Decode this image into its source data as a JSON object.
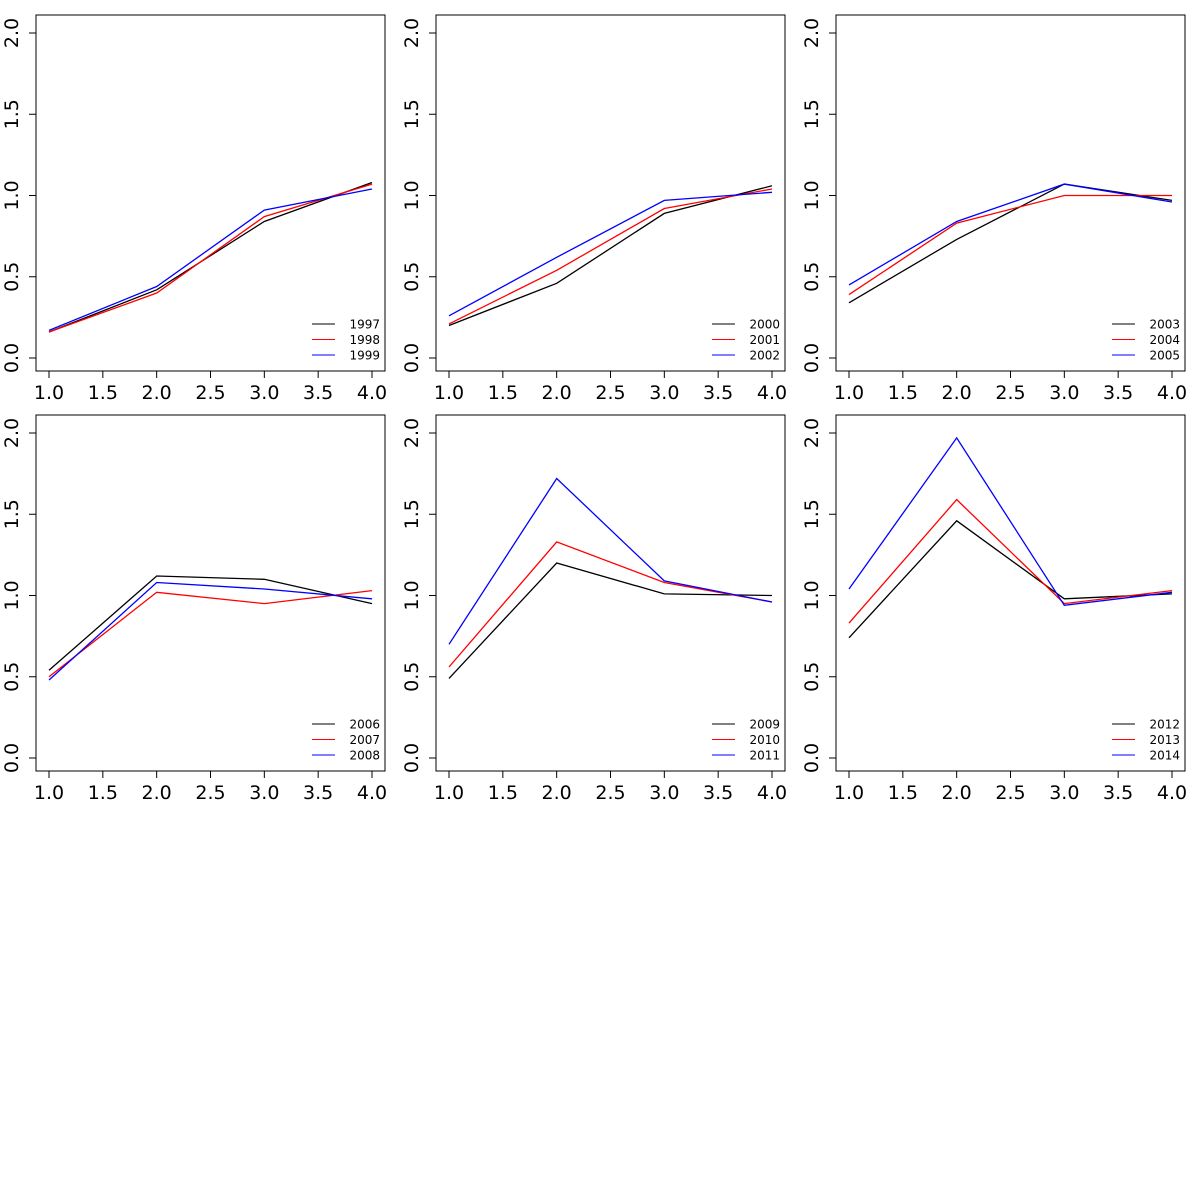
{
  "chart_data": [
    {
      "type": "line",
      "x": [
        1,
        2,
        3,
        4
      ],
      "series": [
        {
          "name": "1997",
          "color": "#000000",
          "values": [
            0.16,
            0.42,
            0.84,
            1.08
          ]
        },
        {
          "name": "1998",
          "color": "#ff0000",
          "values": [
            0.16,
            0.4,
            0.87,
            1.07
          ]
        },
        {
          "name": "1999",
          "color": "#0000ff",
          "values": [
            0.17,
            0.44,
            0.91,
            1.04
          ]
        }
      ],
      "xlim": [
        1,
        4
      ],
      "ylim": [
        0,
        2
      ],
      "xticks": [
        "1.0",
        "1.5",
        "2.0",
        "2.5",
        "3.0",
        "3.5",
        "4.0"
      ],
      "yticks": [
        "0.0",
        "0.5",
        "1.0",
        "1.5",
        "2.0"
      ],
      "legend_position": "bottom-right",
      "grid": false
    },
    {
      "type": "line",
      "x": [
        1,
        2,
        3,
        4
      ],
      "series": [
        {
          "name": "2000",
          "color": "#000000",
          "values": [
            0.2,
            0.46,
            0.89,
            1.06
          ]
        },
        {
          "name": "2001",
          "color": "#ff0000",
          "values": [
            0.21,
            0.54,
            0.92,
            1.04
          ]
        },
        {
          "name": "2002",
          "color": "#0000ff",
          "values": [
            0.26,
            0.62,
            0.97,
            1.02
          ]
        }
      ],
      "xlim": [
        1,
        4
      ],
      "ylim": [
        0,
        2
      ],
      "xticks": [
        "1.0",
        "1.5",
        "2.0",
        "2.5",
        "3.0",
        "3.5",
        "4.0"
      ],
      "yticks": [
        "0.0",
        "0.5",
        "1.0",
        "1.5",
        "2.0"
      ],
      "legend_position": "bottom-right",
      "grid": false
    },
    {
      "type": "line",
      "x": [
        1,
        2,
        3,
        4
      ],
      "series": [
        {
          "name": "2003",
          "color": "#000000",
          "values": [
            0.34,
            0.73,
            1.07,
            0.97
          ]
        },
        {
          "name": "2004",
          "color": "#ff0000",
          "values": [
            0.39,
            0.83,
            1.0,
            1.0
          ]
        },
        {
          "name": "2005",
          "color": "#0000ff",
          "values": [
            0.45,
            0.84,
            1.07,
            0.96
          ]
        }
      ],
      "xlim": [
        1,
        4
      ],
      "ylim": [
        0,
        2
      ],
      "xticks": [
        "1.0",
        "1.5",
        "2.0",
        "2.5",
        "3.0",
        "3.5",
        "4.0"
      ],
      "yticks": [
        "0.0",
        "0.5",
        "1.0",
        "1.5",
        "2.0"
      ],
      "legend_position": "bottom-right",
      "grid": false
    },
    {
      "type": "line",
      "x": [
        1,
        2,
        3,
        4
      ],
      "series": [
        {
          "name": "2006",
          "color": "#000000",
          "values": [
            0.54,
            1.12,
            1.1,
            0.95
          ]
        },
        {
          "name": "2007",
          "color": "#ff0000",
          "values": [
            0.5,
            1.02,
            0.95,
            1.03
          ]
        },
        {
          "name": "2008",
          "color": "#0000ff",
          "values": [
            0.48,
            1.08,
            1.04,
            0.98
          ]
        }
      ],
      "xlim": [
        1,
        4
      ],
      "ylim": [
        0,
        2
      ],
      "xticks": [
        "1.0",
        "1.5",
        "2.0",
        "2.5",
        "3.0",
        "3.5",
        "4.0"
      ],
      "yticks": [
        "0.0",
        "0.5",
        "1.0",
        "1.5",
        "2.0"
      ],
      "legend_position": "bottom-right",
      "grid": false
    },
    {
      "type": "line",
      "x": [
        1,
        2,
        3,
        4
      ],
      "series": [
        {
          "name": "2009",
          "color": "#000000",
          "values": [
            0.49,
            1.2,
            1.01,
            1.0
          ]
        },
        {
          "name": "2010",
          "color": "#ff0000",
          "values": [
            0.56,
            1.33,
            1.08,
            0.96
          ]
        },
        {
          "name": "2011",
          "color": "#0000ff",
          "values": [
            0.7,
            1.72,
            1.09,
            0.96
          ]
        }
      ],
      "xlim": [
        1,
        4
      ],
      "ylim": [
        0,
        2
      ],
      "xticks": [
        "1.0",
        "1.5",
        "2.0",
        "2.5",
        "3.0",
        "3.5",
        "4.0"
      ],
      "yticks": [
        "0.0",
        "0.5",
        "1.0",
        "1.5",
        "2.0"
      ],
      "legend_position": "bottom-right",
      "grid": false
    },
    {
      "type": "line",
      "x": [
        1,
        2,
        3,
        4
      ],
      "series": [
        {
          "name": "2012",
          "color": "#000000",
          "values": [
            0.74,
            1.46,
            0.98,
            1.01
          ]
        },
        {
          "name": "2013",
          "color": "#ff0000",
          "values": [
            0.83,
            1.59,
            0.95,
            1.03
          ]
        },
        {
          "name": "2014",
          "color": "#0000ff",
          "values": [
            1.04,
            1.97,
            0.94,
            1.02
          ]
        }
      ],
      "xlim": [
        1,
        4
      ],
      "ylim": [
        0,
        2
      ],
      "xticks": [
        "1.0",
        "1.5",
        "2.0",
        "2.5",
        "3.0",
        "3.5",
        "4.0"
      ],
      "yticks": [
        "0.0",
        "0.5",
        "1.0",
        "1.5",
        "2.0"
      ],
      "legend_position": "bottom-right",
      "grid": false
    }
  ]
}
